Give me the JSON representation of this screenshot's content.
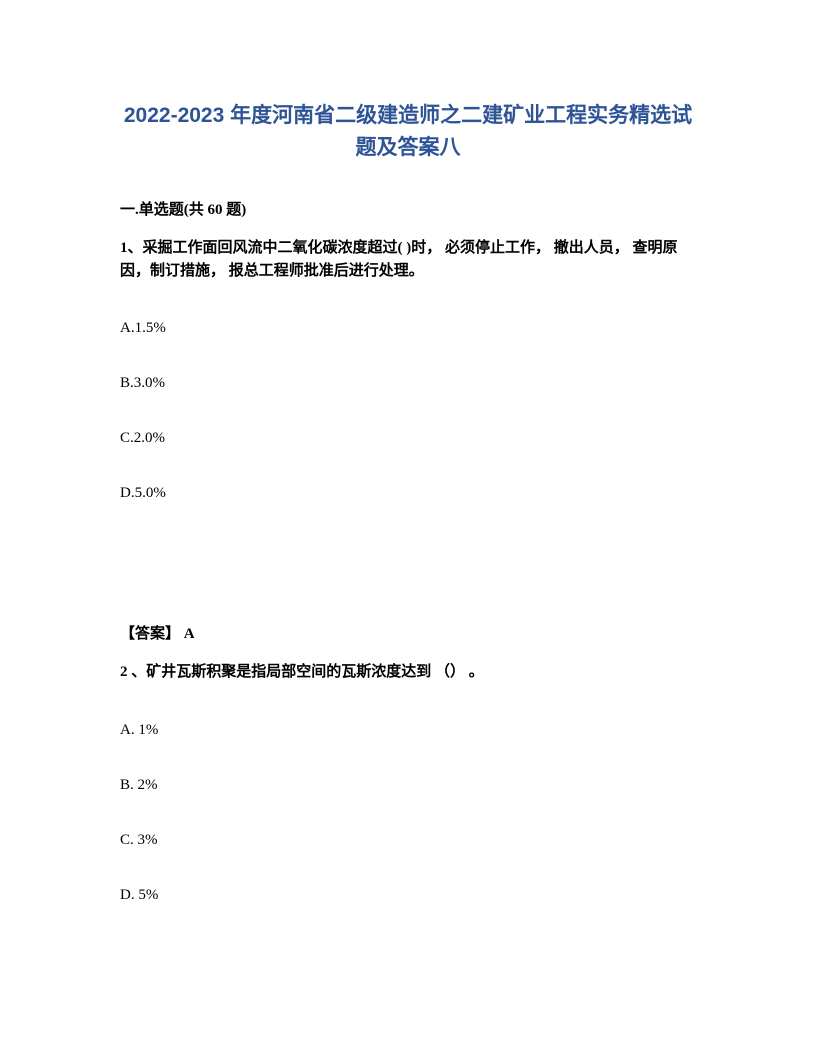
{
  "title": "2022-2023 年度河南省二级建造师之二建矿业工程实务精选试题及答案八",
  "sectionHeader": "一.单选题(共 60 题)",
  "question1": {
    "text": "1、采掘工作面回风流中二氧化碳浓度超过( )时， 必须停止工作， 撤出人员， 查明原因，制订措施， 报总工程师批准后进行处理。",
    "options": {
      "a": "A.1.5%",
      "b": "B.3.0%",
      "c": "C.2.0%",
      "d": "D.5.0%"
    },
    "answer": "【答案】  A"
  },
  "question2": {
    "text": "2 、矿井瓦斯积聚是指局部空间的瓦斯浓度达到 （） 。",
    "options": {
      "a": "A. 1%",
      "b": "B. 2%",
      "c": "C. 3%",
      "d": "D. 5%"
    }
  }
}
